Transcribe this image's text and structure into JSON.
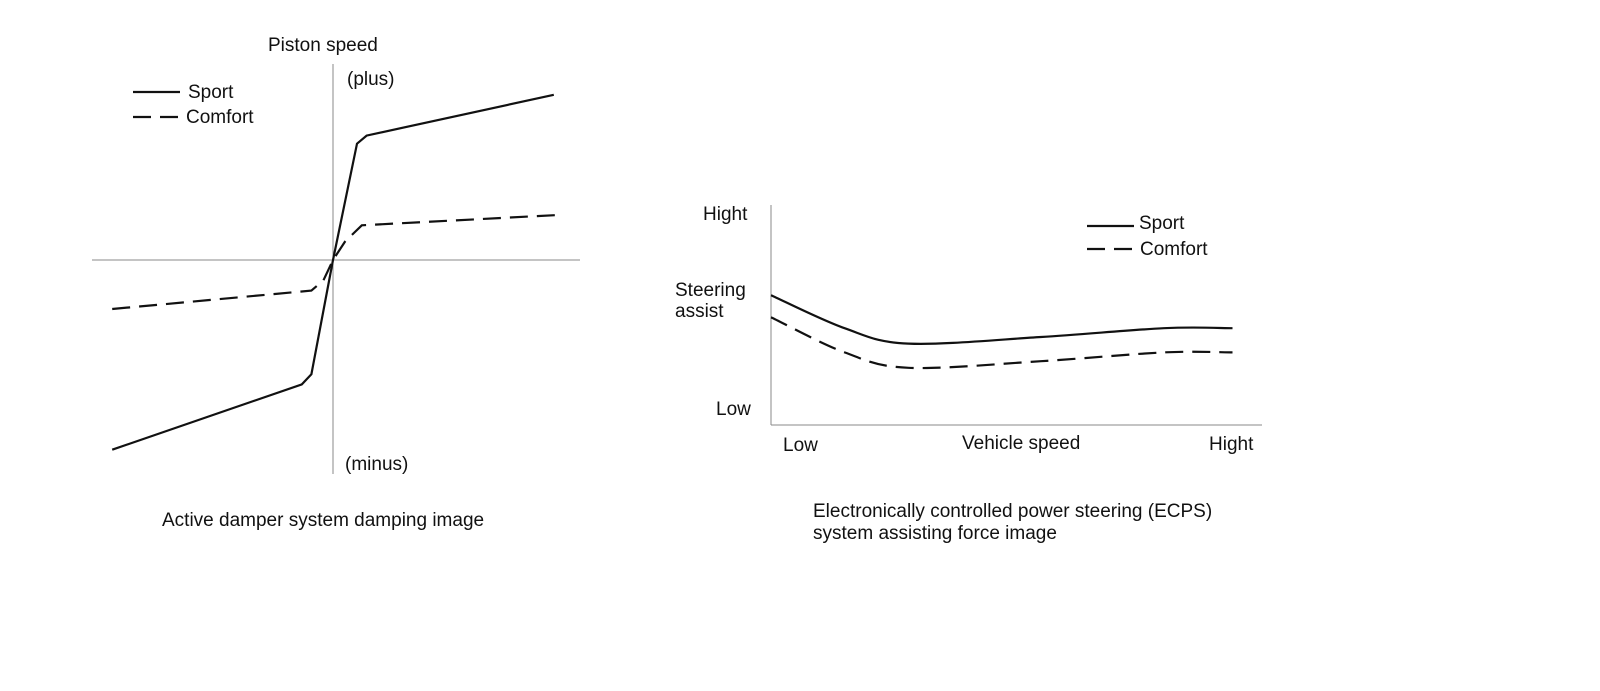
{
  "colors": {
    "line": "#111111",
    "axis": "#8a8a8a",
    "background": "#ffffff"
  },
  "chart_data": [
    {
      "type": "line",
      "caption": "Active damper system damping image",
      "axis_label": "Piston speed",
      "top_label": "(plus)",
      "bottom_label": "(minus)",
      "xlim": [
        -1,
        1
      ],
      "ylim": [
        -1,
        1
      ],
      "legend_position": "top-left",
      "grid": false,
      "series": [
        {
          "name": "Sport",
          "style": "solid",
          "x": [
            -0.92,
            -0.13,
            -0.09,
            0.0,
            0.1,
            0.14,
            0.92
          ],
          "y": [
            -0.93,
            -0.61,
            -0.56,
            0.0,
            0.57,
            0.61,
            0.81
          ]
        },
        {
          "name": "Comfort",
          "style": "dashed",
          "x": [
            -0.92,
            -0.09,
            -0.04,
            0.0,
            0.05,
            0.12,
            0.93
          ],
          "y": [
            -0.24,
            -0.15,
            -0.1,
            0.0,
            0.09,
            0.17,
            0.22
          ]
        }
      ]
    },
    {
      "type": "line",
      "caption_lines": [
        "Electronically controlled power steering (ECPS)",
        "system assisting force image"
      ],
      "xlabel": "Vehicle speed",
      "ylabel_lines": [
        "Steering",
        "assist"
      ],
      "x_tick_labels": [
        "Low",
        "Hight"
      ],
      "y_tick_labels": [
        "Low",
        "Hight"
      ],
      "xlim": [
        0,
        1
      ],
      "ylim": [
        0,
        1
      ],
      "legend_position": "top-right",
      "grid": false,
      "series": [
        {
          "name": "Sport",
          "style": "solid",
          "x": [
            0.0,
            0.15,
            0.28,
            0.55,
            0.8,
            0.94
          ],
          "y": [
            0.59,
            0.44,
            0.37,
            0.4,
            0.44,
            0.44
          ]
        },
        {
          "name": "Comfort",
          "style": "dashed",
          "x": [
            0.0,
            0.15,
            0.28,
            0.55,
            0.8,
            0.94
          ],
          "y": [
            0.49,
            0.33,
            0.26,
            0.29,
            0.33,
            0.33
          ]
        }
      ]
    }
  ]
}
